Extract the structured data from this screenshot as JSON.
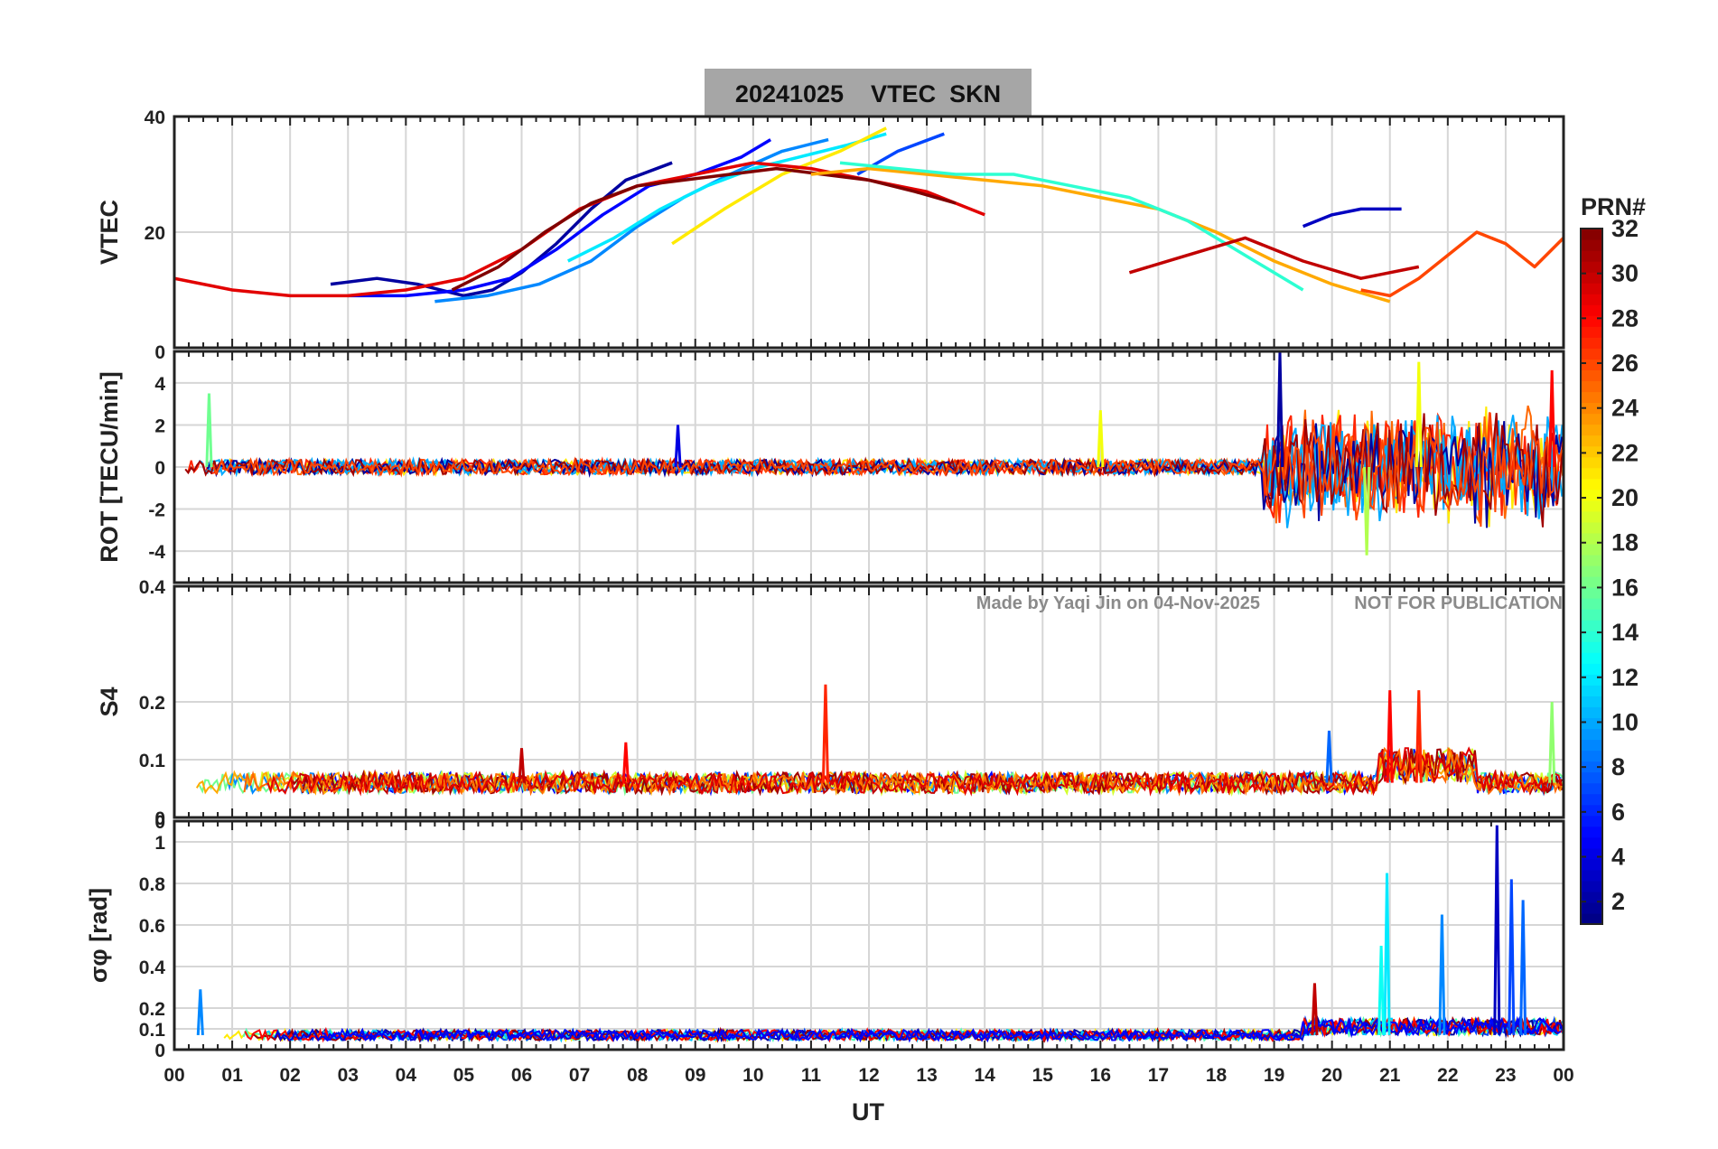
{
  "title": "20241025    VTEC  SKN",
  "watermark": {
    "made_by": "Made by Yaqi Jin on 04-Nov-2025",
    "notice": "NOT FOR PUBLICATION"
  },
  "colorbar": {
    "label": "PRN#",
    "ticks": [
      "32",
      "30",
      "28",
      "26",
      "24",
      "22",
      "20",
      "18",
      "16",
      "14",
      "12",
      "10",
      "8",
      "6",
      "4",
      "2"
    ],
    "tick_values": [
      32,
      30,
      28,
      26,
      24,
      22,
      20,
      18,
      16,
      14,
      12,
      10,
      8,
      6,
      4,
      2
    ],
    "range": [
      1,
      32
    ],
    "colormap": "jet"
  },
  "chart_data": [
    {
      "type": "line",
      "panel": "vtec",
      "ylabel": "VTEC",
      "xlabel": "",
      "xlim": [
        0,
        24
      ],
      "ylim": [
        0,
        40
      ],
      "yticks": [
        20,
        40
      ],
      "ytick_labels": [
        "20",
        "40"
      ],
      "grid": true,
      "series": [
        {
          "name": "PRN 2",
          "prn": 2,
          "x": [
            2.7,
            3.5,
            4.2,
            5.0,
            5.5,
            6.0,
            6.6,
            7.2,
            7.8,
            8.6
          ],
          "values": [
            11,
            12,
            11,
            9,
            10,
            13,
            18,
            24,
            29,
            32
          ]
        },
        {
          "name": "PRN 5",
          "prn": 5,
          "x": [
            3.0,
            4.0,
            5.0,
            5.8,
            6.6,
            7.4,
            8.2,
            9.0,
            9.8,
            10.3
          ],
          "values": [
            9,
            9,
            10,
            12,
            17,
            23,
            28,
            30,
            33,
            36
          ]
        },
        {
          "name": "PRN 9",
          "prn": 9,
          "x": [
            4.5,
            5.4,
            6.3,
            7.2,
            8.0,
            8.8,
            9.6,
            10.5,
            11.3
          ],
          "values": [
            8,
            9,
            11,
            15,
            21,
            26,
            30,
            34,
            36
          ]
        },
        {
          "name": "PRN 12",
          "prn": 12,
          "x": [
            6.8,
            7.6,
            8.4,
            9.2,
            10.0,
            10.8,
            11.6,
            12.3
          ],
          "values": [
            15,
            19,
            24,
            28,
            31,
            33,
            35,
            37
          ]
        },
        {
          "name": "PRN 21",
          "prn": 21,
          "x": [
            8.6,
            9.5,
            10.5,
            11.5,
            12.3
          ],
          "values": [
            18,
            24,
            30,
            34,
            38
          ]
        },
        {
          "name": "PRN 7",
          "prn": 7,
          "x": [
            11.8,
            12.5,
            13.3
          ],
          "values": [
            30,
            34,
            37
          ]
        },
        {
          "name": "PRN 29",
          "prn": 29,
          "x": [
            0.0,
            1.0,
            2.0,
            3.0,
            4.0,
            5.0,
            6.0,
            7.0,
            8.0,
            9.0,
            10.0,
            11.0,
            12.0,
            13.0,
            14.0
          ],
          "values": [
            12,
            10,
            9,
            9,
            10,
            12,
            17,
            24,
            28,
            30,
            32,
            31,
            29,
            27,
            23
          ]
        },
        {
          "name": "PRN 32",
          "prn": 32,
          "x": [
            4.8,
            5.6,
            6.4,
            7.2,
            8.0,
            8.8,
            9.6,
            10.4,
            11.2,
            12.0,
            12.8,
            13.5
          ],
          "values": [
            10,
            14,
            20,
            25,
            28,
            29,
            30,
            31,
            30,
            29,
            27,
            25
          ]
        },
        {
          "name": "PRN 23",
          "prn": 23,
          "x": [
            11.0,
            12.0,
            13.0,
            14.0,
            15.0,
            16.0,
            17.0,
            18.0,
            19.0,
            20.0,
            21.0
          ],
          "values": [
            30,
            31,
            30,
            29,
            28,
            26,
            24,
            20,
            15,
            11,
            8
          ]
        },
        {
          "name": "PRN 14",
          "prn": 14,
          "x": [
            11.5,
            12.5,
            13.5,
            14.5,
            15.5,
            16.5,
            17.5,
            18.5,
            19.5
          ],
          "values": [
            32,
            31,
            30,
            30,
            28,
            26,
            22,
            16,
            10
          ]
        },
        {
          "name": "PRN 3",
          "prn": 3,
          "x": [
            19.5,
            20.0,
            20.5,
            21.0,
            21.2
          ],
          "values": [
            21,
            23,
            24,
            24,
            24
          ]
        },
        {
          "name": "PRN 26",
          "prn": 26,
          "x": [
            20.5,
            21.0,
            21.5,
            22.0,
            22.5,
            23.0,
            23.5,
            24.0
          ],
          "values": [
            10,
            9,
            12,
            16,
            20,
            18,
            14,
            19
          ]
        },
        {
          "name": "PRN 30",
          "prn": 30,
          "x": [
            16.5,
            17.5,
            18.5,
            19.5,
            20.5,
            21.5
          ],
          "values": [
            13,
            16,
            19,
            15,
            12,
            14
          ]
        }
      ]
    },
    {
      "type": "line",
      "panel": "rot",
      "ylabel": "ROT [TECU/min]",
      "xlim": [
        0,
        24
      ],
      "ylim": [
        -5.5,
        5.5
      ],
      "yticks": [
        -4,
        -2,
        0,
        2,
        4
      ],
      "ytick_labels": [
        "-4",
        "-2",
        "0",
        "2",
        "4"
      ],
      "top_label": "0",
      "grid": true,
      "series_note": "baseline near 0 with |ROT| < 1 until 18.5 UT; strong fluctuations up to about ±5 TECU/min from 19 to 24 UT",
      "spikes": [
        {
          "prn": 16,
          "x": 0.6,
          "value": 3.5
        },
        {
          "prn": 4,
          "x": 8.7,
          "value": 2.0
        },
        {
          "prn": 20,
          "x": 16.0,
          "value": 2.7
        },
        {
          "prn": 2,
          "x": 19.1,
          "value": 5.5
        },
        {
          "prn": 20,
          "x": 21.5,
          "value": 5.0
        },
        {
          "prn": 18,
          "x": 20.6,
          "value": -4.2
        },
        {
          "prn": 28,
          "x": 23.8,
          "value": 4.6
        }
      ]
    },
    {
      "type": "line",
      "panel": "s4",
      "ylabel": "S4",
      "xlim": [
        0,
        24
      ],
      "ylim": [
        0,
        0.4
      ],
      "yticks": [
        0,
        0.1,
        0.2,
        0.4
      ],
      "ytick_labels": [
        "0",
        "0.1",
        "0.2",
        "0.4"
      ],
      "grid": true,
      "series_note": "S4 mostly 0.04 to 0.09 all day; enhanced up to about 0.22 between 20.8 and 21.8 UT",
      "spikes": [
        {
          "prn": 27,
          "x": 11.25,
          "value": 0.23
        },
        {
          "prn": 28,
          "x": 21.0,
          "value": 0.22
        },
        {
          "prn": 27,
          "x": 21.5,
          "value": 0.22
        },
        {
          "prn": 30,
          "x": 6.0,
          "value": 0.12
        },
        {
          "prn": 28,
          "x": 7.8,
          "value": 0.13
        },
        {
          "prn": 8,
          "x": 19.95,
          "value": 0.15
        },
        {
          "prn": 17,
          "x": 23.8,
          "value": 0.2
        }
      ]
    },
    {
      "type": "line",
      "panel": "sigma_phi",
      "ylabel": "σφ [rad]",
      "xlabel": "UT",
      "xlim": [
        0,
        24
      ],
      "ylim": [
        0,
        1.1
      ],
      "yticks": [
        0,
        0.1,
        0.2,
        0.4,
        0.6,
        0.8,
        1
      ],
      "ytick_labels": [
        "0",
        "0.1",
        "0.2",
        "0.4",
        "0.6",
        "0.8",
        "1"
      ],
      "top_label": "0",
      "categories": [
        "00",
        "01",
        "02",
        "03",
        "04",
        "05",
        "06",
        "07",
        "08",
        "09",
        "10",
        "11",
        "12",
        "13",
        "14",
        "15",
        "16",
        "17",
        "18",
        "19",
        "20",
        "21",
        "22",
        "23",
        "00"
      ],
      "grid": true,
      "series_note": "σφ mostly 0.03 to 0.12 rad; spikes in the late UT hours",
      "spikes": [
        {
          "prn": 12,
          "x": 20.95,
          "value": 0.85
        },
        {
          "prn": 13,
          "x": 20.85,
          "value": 0.5
        },
        {
          "prn": 9,
          "x": 21.9,
          "value": 0.65
        },
        {
          "prn": 3,
          "x": 22.85,
          "value": 1.08
        },
        {
          "prn": 7,
          "x": 23.1,
          "value": 0.82
        },
        {
          "prn": 8,
          "x": 23.3,
          "value": 0.72
        },
        {
          "prn": 30,
          "x": 19.7,
          "value": 0.32
        },
        {
          "prn": 9,
          "x": 0.45,
          "value": 0.29
        }
      ]
    }
  ]
}
